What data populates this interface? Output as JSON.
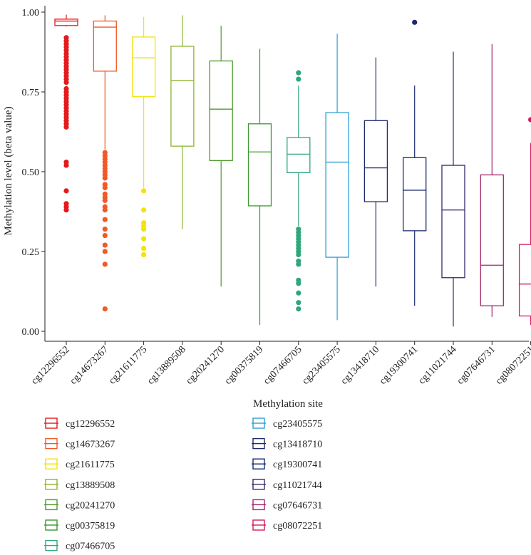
{
  "chart_data": {
    "type": "boxplot",
    "title": "",
    "xlabel": "Methylation site",
    "ylabel": "Methylation level (beta value)",
    "ylim": [
      -0.02,
      1.0
    ],
    "yticks": [
      {
        "value": 0.0,
        "label": "0.00"
      },
      {
        "value": 0.25,
        "label": "0.25"
      },
      {
        "value": 0.5,
        "label": "0.50"
      },
      {
        "value": 0.75,
        "label": "0.75"
      },
      {
        "value": 1.0,
        "label": "1.00"
      }
    ],
    "grid": false,
    "legend_position": "bottom",
    "series": [
      {
        "name": "cg12296552",
        "color": "#e41a1c",
        "min": 0.955,
        "q1": 0.958,
        "median": 0.972,
        "q3": 0.978,
        "max": 0.992,
        "outliers": [
          0.92,
          0.91,
          0.9,
          0.89,
          0.88,
          0.87,
          0.86,
          0.85,
          0.84,
          0.83,
          0.82,
          0.81,
          0.8,
          0.79,
          0.78,
          0.76,
          0.75,
          0.74,
          0.73,
          0.72,
          0.71,
          0.7,
          0.69,
          0.68,
          0.67,
          0.66,
          0.65,
          0.64,
          0.53,
          0.52,
          0.44,
          0.4,
          0.39,
          0.38
        ]
      },
      {
        "name": "cg14673267",
        "color": "#f05a28",
        "min": 0.57,
        "q1": 0.815,
        "median": 0.953,
        "q3": 0.972,
        "max": 0.99,
        "outliers": [
          0.56,
          0.55,
          0.54,
          0.53,
          0.52,
          0.51,
          0.5,
          0.49,
          0.48,
          0.46,
          0.45,
          0.43,
          0.42,
          0.41,
          0.39,
          0.38,
          0.35,
          0.32,
          0.3,
          0.27,
          0.25,
          0.21,
          0.07
        ]
      },
      {
        "name": "cg21611775",
        "color": "#f4e20c",
        "min": 0.45,
        "q1": 0.735,
        "median": 0.857,
        "q3": 0.922,
        "max": 0.985,
        "outliers": [
          0.44,
          0.38,
          0.34,
          0.33,
          0.32,
          0.29,
          0.26,
          0.24
        ]
      },
      {
        "name": "cg13889508",
        "color": "#8db42f",
        "min": 0.32,
        "q1": 0.58,
        "median": 0.785,
        "q3": 0.893,
        "max": 0.99,
        "outliers": []
      },
      {
        "name": "cg20241270",
        "color": "#4c9a2a",
        "min": 0.14,
        "q1": 0.535,
        "median": 0.696,
        "q3": 0.847,
        "max": 0.957,
        "outliers": []
      },
      {
        "name": "cg00375819",
        "color": "#3b9a2f",
        "min": 0.02,
        "q1": 0.393,
        "median": 0.562,
        "q3": 0.65,
        "max": 0.885,
        "outliers": []
      },
      {
        "name": "cg07466705",
        "color": "#2ea77a",
        "min": 0.33,
        "q1": 0.497,
        "median": 0.555,
        "q3": 0.607,
        "max": 0.77,
        "outliers": [
          0.81,
          0.79,
          0.32,
          0.31,
          0.3,
          0.29,
          0.28,
          0.27,
          0.26,
          0.25,
          0.24,
          0.22,
          0.21,
          0.16,
          0.15,
          0.12,
          0.09,
          0.07
        ]
      },
      {
        "name": "cg23405575",
        "color": "#2a9fd6",
        "min": 0.035,
        "q1": 0.232,
        "median": 0.53,
        "q3": 0.685,
        "max": 0.932,
        "outliers": []
      },
      {
        "name": "cg13418710",
        "color": "#1c2a6b",
        "min": 0.14,
        "q1": 0.406,
        "median": 0.512,
        "q3": 0.66,
        "max": 0.858,
        "outliers": []
      },
      {
        "name": "cg19300741",
        "color": "#1a2a6e",
        "min": 0.08,
        "q1": 0.315,
        "median": 0.442,
        "q3": 0.544,
        "max": 0.77,
        "outliers": [
          0.968
        ]
      },
      {
        "name": "cg11021744",
        "color": "#3a2870",
        "min": 0.015,
        "q1": 0.168,
        "median": 0.38,
        "q3": 0.52,
        "max": 0.876,
        "outliers": []
      },
      {
        "name": "cg07646731",
        "color": "#a3286b",
        "min": 0.045,
        "q1": 0.08,
        "median": 0.207,
        "q3": 0.49,
        "max": 0.9,
        "outliers": []
      },
      {
        "name": "cg08072251",
        "color": "#d31d5e",
        "min": 0.02,
        "q1": 0.048,
        "median": 0.148,
        "q3": 0.272,
        "max": 0.59,
        "outliers": [
          0.663
        ]
      }
    ]
  }
}
